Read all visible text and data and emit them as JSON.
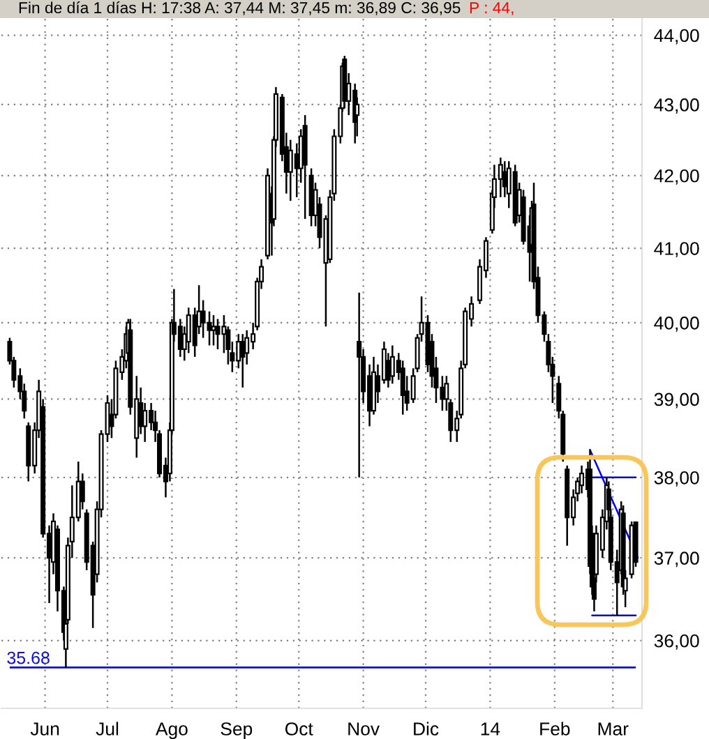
{
  "chart_data": {
    "type": "candlestick",
    "title": "Fin de día 1 días H: 17:38 A: 37,44 M: 37,45 m: 36,89 C: 36,95",
    "annotations": [
      "P : 44,"
    ],
    "x": [
      "2013-05-15",
      "2013-05-17",
      "2013-05-20",
      "2013-05-22",
      "2013-05-24",
      "2013-05-27",
      "2013-05-29",
      "2013-05-31",
      "2013-06-03",
      "2013-06-05",
      "2013-06-07",
      "2013-06-10",
      "2013-06-11",
      "2013-06-12",
      "2013-06-14",
      "2013-06-17",
      "2013-06-19",
      "2013-06-21",
      "2013-06-24",
      "2013-06-26",
      "2013-06-28",
      "2013-07-01",
      "2013-07-03",
      "2013-07-05",
      "2013-07-08",
      "2013-07-10",
      "2013-07-11",
      "2013-07-12",
      "2013-07-15",
      "2013-07-17",
      "2013-07-19",
      "2013-07-22",
      "2013-07-24",
      "2013-07-26",
      "2013-07-29",
      "2013-07-31",
      "2013-08-01",
      "2013-08-02",
      "2013-08-05",
      "2013-08-07",
      "2013-08-09",
      "2013-08-12",
      "2013-08-14",
      "2013-08-16",
      "2013-08-19",
      "2013-08-21",
      "2013-08-23",
      "2013-08-26",
      "2013-08-28",
      "2013-08-30",
      "2013-09-02",
      "2013-09-04",
      "2013-09-06",
      "2013-09-09",
      "2013-09-11",
      "2013-09-13",
      "2013-09-16",
      "2013-09-18",
      "2013-09-19",
      "2013-09-20",
      "2013-09-23",
      "2013-09-25",
      "2013-09-27",
      "2013-09-30",
      "2013-10-02",
      "2013-10-04",
      "2013-10-07",
      "2013-10-09",
      "2013-10-11",
      "2013-10-14",
      "2013-10-16",
      "2013-10-18",
      "2013-10-21",
      "2013-10-22",
      "2013-10-23",
      "2013-10-25",
      "2013-10-28",
      "2013-10-29",
      "2013-10-30",
      "2013-11-01",
      "2013-11-04",
      "2013-11-06",
      "2013-11-08",
      "2013-11-11",
      "2013-11-13",
      "2013-11-15",
      "2013-11-18",
      "2013-11-20",
      "2013-11-22",
      "2013-11-25",
      "2013-11-27",
      "2013-11-29",
      "2013-12-02",
      "2013-12-04",
      "2013-12-06",
      "2013-12-09",
      "2013-12-11",
      "2013-12-13",
      "2013-12-16",
      "2013-12-18",
      "2013-12-20",
      "2013-12-23",
      "2013-12-27",
      "2013-12-30",
      "2014-01-02",
      "2014-01-03",
      "2014-01-06",
      "2014-01-08",
      "2014-01-10",
      "2014-01-13",
      "2014-01-15",
      "2014-01-17",
      "2014-01-20",
      "2014-01-21",
      "2014-01-22",
      "2014-01-24",
      "2014-01-27",
      "2014-01-29",
      "2014-01-31",
      "2014-02-03",
      "2014-02-05",
      "2014-02-07",
      "2014-02-10",
      "2014-02-12",
      "2014-02-14",
      "2014-02-17",
      "2014-02-18",
      "2014-02-19",
      "2014-02-20",
      "2014-02-21",
      "2014-02-24",
      "2014-02-26",
      "2014-02-27",
      "2014-02-28",
      "2014-03-03",
      "2014-03-05",
      "2014-03-06",
      "2014-03-07",
      "2014-03-10",
      "2014-03-12"
    ],
    "ohlc": [
      [
        39.75,
        39.8,
        39.45,
        39.5
      ],
      [
        39.5,
        39.55,
        39.15,
        39.25
      ],
      [
        39.3,
        39.4,
        39.0,
        39.1
      ],
      [
        39.1,
        39.2,
        38.75,
        38.85
      ],
      [
        38.65,
        38.7,
        37.95,
        38.15
      ],
      [
        38.15,
        38.7,
        38.05,
        38.6
      ],
      [
        38.6,
        39.25,
        38.5,
        39.1
      ],
      [
        38.9,
        39.0,
        37.25,
        37.3
      ],
      [
        37.3,
        37.4,
        36.45,
        37.0
      ],
      [
        36.95,
        37.55,
        36.8,
        37.45
      ],
      [
        37.35,
        37.4,
        36.35,
        36.6
      ],
      [
        36.6,
        36.65,
        36.0,
        36.1
      ],
      [
        35.9,
        36.3,
        35.68,
        36.2
      ],
      [
        36.25,
        37.25,
        36.2,
        37.15
      ],
      [
        37.2,
        37.9,
        37.0,
        37.5
      ],
      [
        37.5,
        38.2,
        37.45,
        37.95
      ],
      [
        37.95,
        38.05,
        37.6,
        37.7
      ],
      [
        37.55,
        37.6,
        36.85,
        36.95
      ],
      [
        37.15,
        37.2,
        36.15,
        36.55
      ],
      [
        36.8,
        37.7,
        36.7,
        37.6
      ],
      [
        37.6,
        38.6,
        37.5,
        38.55
      ],
      [
        38.55,
        39.05,
        38.45,
        38.95
      ],
      [
        38.8,
        39.0,
        38.5,
        38.65
      ],
      [
        38.8,
        39.5,
        38.75,
        39.4
      ],
      [
        39.35,
        39.65,
        39.25,
        39.55
      ],
      [
        39.5,
        39.95,
        39.4,
        39.85
      ],
      [
        39.6,
        40.05,
        39.5,
        40.0
      ],
      [
        39.9,
        40.05,
        38.8,
        38.9
      ],
      [
        38.5,
        39.3,
        38.25,
        39.0
      ],
      [
        38.95,
        39.15,
        38.55,
        38.65
      ],
      [
        38.65,
        38.95,
        38.45,
        38.85
      ],
      [
        38.85,
        38.95,
        38.6,
        38.7
      ],
      [
        38.7,
        38.85,
        38.45,
        38.6
      ],
      [
        38.55,
        38.6,
        38.0,
        38.05
      ],
      [
        38.15,
        38.25,
        37.75,
        37.95
      ],
      [
        38.05,
        38.7,
        37.95,
        38.6
      ],
      [
        38.6,
        40.05,
        38.55,
        40.0
      ],
      [
        40.0,
        40.45,
        39.75,
        39.85
      ],
      [
        39.95,
        40.05,
        39.55,
        39.65
      ],
      [
        39.65,
        39.95,
        39.5,
        39.85
      ],
      [
        39.75,
        40.2,
        39.6,
        40.1
      ],
      [
        40.1,
        40.2,
        39.55,
        39.7
      ],
      [
        39.95,
        40.5,
        39.85,
        40.15
      ],
      [
        40.15,
        40.3,
        39.8,
        40.0
      ],
      [
        40.0,
        40.15,
        39.7,
        39.9
      ],
      [
        39.9,
        40.1,
        39.7,
        39.95
      ],
      [
        39.95,
        40.05,
        39.65,
        39.85
      ],
      [
        39.85,
        40.1,
        39.6,
        39.95
      ],
      [
        39.9,
        39.95,
        39.45,
        39.65
      ],
      [
        39.6,
        39.75,
        39.35,
        39.5
      ],
      [
        39.5,
        39.85,
        39.4,
        39.75
      ],
      [
        39.75,
        39.85,
        39.15,
        39.55
      ],
      [
        39.6,
        39.9,
        39.45,
        39.8
      ],
      [
        39.75,
        40.0,
        39.65,
        39.85
      ],
      [
        39.95,
        40.6,
        39.9,
        40.55
      ],
      [
        40.55,
        40.85,
        40.45,
        40.75
      ],
      [
        40.9,
        42.1,
        40.85,
        42.0
      ],
      [
        41.75,
        41.85,
        40.9,
        41.35
      ],
      [
        41.4,
        42.55,
        41.3,
        42.5
      ],
      [
        42.5,
        43.25,
        42.4,
        43.15
      ],
      [
        43.1,
        43.15,
        42.2,
        42.3
      ],
      [
        42.4,
        42.6,
        41.75,
        42.05
      ],
      [
        42.05,
        42.5,
        41.65,
        42.35
      ],
      [
        42.3,
        42.45,
        41.7,
        42.1
      ],
      [
        42.1,
        42.65,
        41.9,
        42.55
      ],
      [
        42.7,
        42.85,
        41.4,
        42.15
      ],
      [
        42.0,
        42.1,
        41.3,
        41.45
      ],
      [
        41.45,
        41.9,
        41.3,
        41.8
      ],
      [
        41.6,
        41.7,
        41.0,
        41.15
      ],
      [
        40.8,
        41.45,
        39.95,
        41.4
      ],
      [
        40.85,
        41.8,
        40.8,
        41.7
      ],
      [
        41.75,
        42.65,
        41.65,
        42.55
      ],
      [
        42.55,
        43.0,
        42.45,
        42.95
      ],
      [
        42.95,
        43.6,
        42.9,
        43.55
      ],
      [
        43.65,
        43.7,
        42.95,
        43.05
      ],
      [
        43.05,
        43.45,
        42.85,
        43.3
      ],
      [
        43.2,
        43.3,
        42.45,
        42.75
      ],
      [
        42.85,
        43.1,
        42.55,
        43.0
      ],
      [
        39.75,
        40.4,
        38.0,
        39.55
      ],
      [
        39.55,
        39.65,
        38.95,
        39.1
      ],
      [
        39.3,
        39.45,
        38.65,
        38.85
      ],
      [
        38.85,
        39.55,
        38.8,
        39.35
      ],
      [
        39.3,
        39.45,
        38.95,
        39.1
      ],
      [
        39.25,
        39.75,
        39.2,
        39.65
      ],
      [
        39.5,
        39.6,
        39.15,
        39.25
      ],
      [
        39.3,
        39.7,
        39.2,
        39.55
      ],
      [
        39.5,
        39.6,
        39.25,
        39.35
      ],
      [
        39.4,
        39.5,
        38.8,
        39.05
      ],
      [
        39.1,
        39.3,
        38.85,
        38.95
      ],
      [
        39.0,
        39.4,
        38.95,
        39.3
      ],
      [
        39.4,
        39.85,
        39.35,
        39.8
      ],
      [
        39.85,
        40.35,
        39.75,
        40.0
      ],
      [
        40.0,
        40.1,
        39.35,
        39.45
      ],
      [
        39.75,
        39.85,
        39.15,
        39.3
      ],
      [
        39.4,
        39.55,
        38.95,
        39.15
      ],
      [
        39.15,
        39.3,
        38.85,
        39.0
      ],
      [
        39.0,
        39.3,
        38.85,
        39.2
      ],
      [
        38.95,
        39.0,
        38.45,
        38.6
      ],
      [
        38.6,
        38.85,
        38.45,
        38.75
      ],
      [
        38.8,
        39.5,
        38.75,
        39.4
      ],
      [
        39.45,
        40.2,
        39.4,
        40.15
      ],
      [
        40.05,
        40.35,
        39.95,
        40.25
      ],
      [
        40.3,
        40.85,
        40.25,
        40.75
      ],
      [
        40.7,
        41.15,
        40.6,
        41.1
      ],
      [
        41.25,
        41.8,
        41.2,
        41.75
      ],
      [
        41.7,
        42.15,
        41.55,
        41.95
      ],
      [
        41.95,
        42.25,
        41.7,
        42.15
      ],
      [
        42.05,
        42.2,
        41.7,
        41.85
      ],
      [
        41.75,
        42.2,
        41.55,
        42.1
      ],
      [
        42.05,
        42.15,
        41.3,
        41.35
      ],
      [
        41.45,
        41.9,
        41.35,
        41.8
      ],
      [
        41.7,
        41.8,
        41.05,
        41.1
      ],
      [
        41.3,
        41.45,
        40.55,
        40.95
      ],
      [
        41.05,
        41.65,
        40.95,
        41.55
      ],
      [
        41.6,
        41.9,
        40.45,
        40.55
      ],
      [
        40.6,
        40.75,
        40.0,
        40.1
      ],
      [
        40.1,
        40.15,
        39.75,
        39.85
      ],
      [
        39.75,
        39.85,
        39.35,
        39.45
      ],
      [
        39.45,
        39.55,
        38.95,
        39.3
      ],
      [
        39.2,
        39.3,
        38.75,
        38.85
      ],
      [
        38.8,
        38.85,
        38.2,
        38.3
      ],
      [
        38.1,
        38.15,
        37.15,
        37.5
      ],
      [
        37.5,
        37.85,
        37.4,
        37.75
      ],
      [
        37.8,
        38.0,
        37.7,
        37.95
      ],
      [
        37.9,
        38.15,
        37.8,
        38.05
      ],
      [
        38.1,
        38.2,
        37.75,
        37.85
      ],
      [
        38.1,
        38.35,
        36.8,
        36.9
      ],
      [
        37.3,
        37.4,
        36.55,
        36.65
      ],
      [
        36.75,
        36.9,
        36.35,
        36.5
      ],
      [
        36.8,
        37.4,
        36.7,
        37.3
      ],
      [
        37.1,
        37.6,
        37.0,
        37.5
      ],
      [
        37.45,
        38.0,
        37.35,
        37.9
      ],
      [
        37.85,
        37.95,
        37.5,
        37.6
      ],
      [
        37.5,
        37.6,
        36.85,
        36.95
      ],
      [
        36.95,
        37.1,
        36.3,
        36.7
      ],
      [
        36.85,
        37.7,
        36.8,
        37.6
      ],
      [
        37.55,
        37.65,
        36.55,
        36.65
      ],
      [
        36.6,
        36.85,
        36.4,
        36.75
      ],
      [
        36.8,
        37.45,
        36.75,
        37.4
      ],
      [
        37.44,
        37.45,
        36.89,
        36.95
      ]
    ],
    "series": [
      {
        "type": "line",
        "color": "#0000ff",
        "x": [
          "2014-02-19",
          "2014-03-12"
        ],
        "values": [
          38.0,
          38.0
        ]
      },
      {
        "type": "line",
        "color": "#0000ff",
        "x": [
          "2014-02-18",
          "2014-03-13"
        ],
        "values": [
          38.35,
          37.0
        ]
      },
      {
        "type": "line",
        "color": "#0000ff",
        "x": [
          "2014-02-19",
          "2014-03-12"
        ],
        "values": [
          36.3,
          36.3
        ]
      }
    ],
    "xlim": [
      "2013-05-11",
      "2014-03-15"
    ],
    "xticks": [
      {
        "value": "2013-06-01",
        "label": "Jun"
      },
      {
        "value": "2013-07-01",
        "label": "Jul"
      },
      {
        "value": "2013-08-01",
        "label": "Ago"
      },
      {
        "value": "2013-09-01",
        "label": "Sep"
      },
      {
        "value": "2013-10-01",
        "label": "Oct"
      },
      {
        "value": "2013-11-01",
        "label": "Nov"
      },
      {
        "value": "2013-12-01",
        "label": "Dic"
      },
      {
        "value": "2014-01-01",
        "label": "14"
      },
      {
        "value": "2014-02-01",
        "label": "Feb"
      },
      {
        "value": "2014-03-01",
        "label": "Mar"
      }
    ],
    "ylim": [
      35.2,
      44.25
    ],
    "yticks": [
      {
        "value": 36,
        "label": "36,00"
      },
      {
        "value": 37,
        "label": "37,00"
      },
      {
        "value": 38,
        "label": "38,00"
      },
      {
        "value": 39,
        "label": "39,00"
      },
      {
        "value": 40,
        "label": "40,00"
      },
      {
        "value": 41,
        "label": "41,00"
      },
      {
        "value": 42,
        "label": "42,00"
      },
      {
        "value": 43,
        "label": "43,00"
      },
      {
        "value": 44,
        "label": "44,00"
      }
    ],
    "log": true,
    "grid": true,
    "ref_lines": [
      {
        "axis": "y",
        "value": 35.68,
        "label": "35.68",
        "color": "#1010d0"
      }
    ]
  }
}
